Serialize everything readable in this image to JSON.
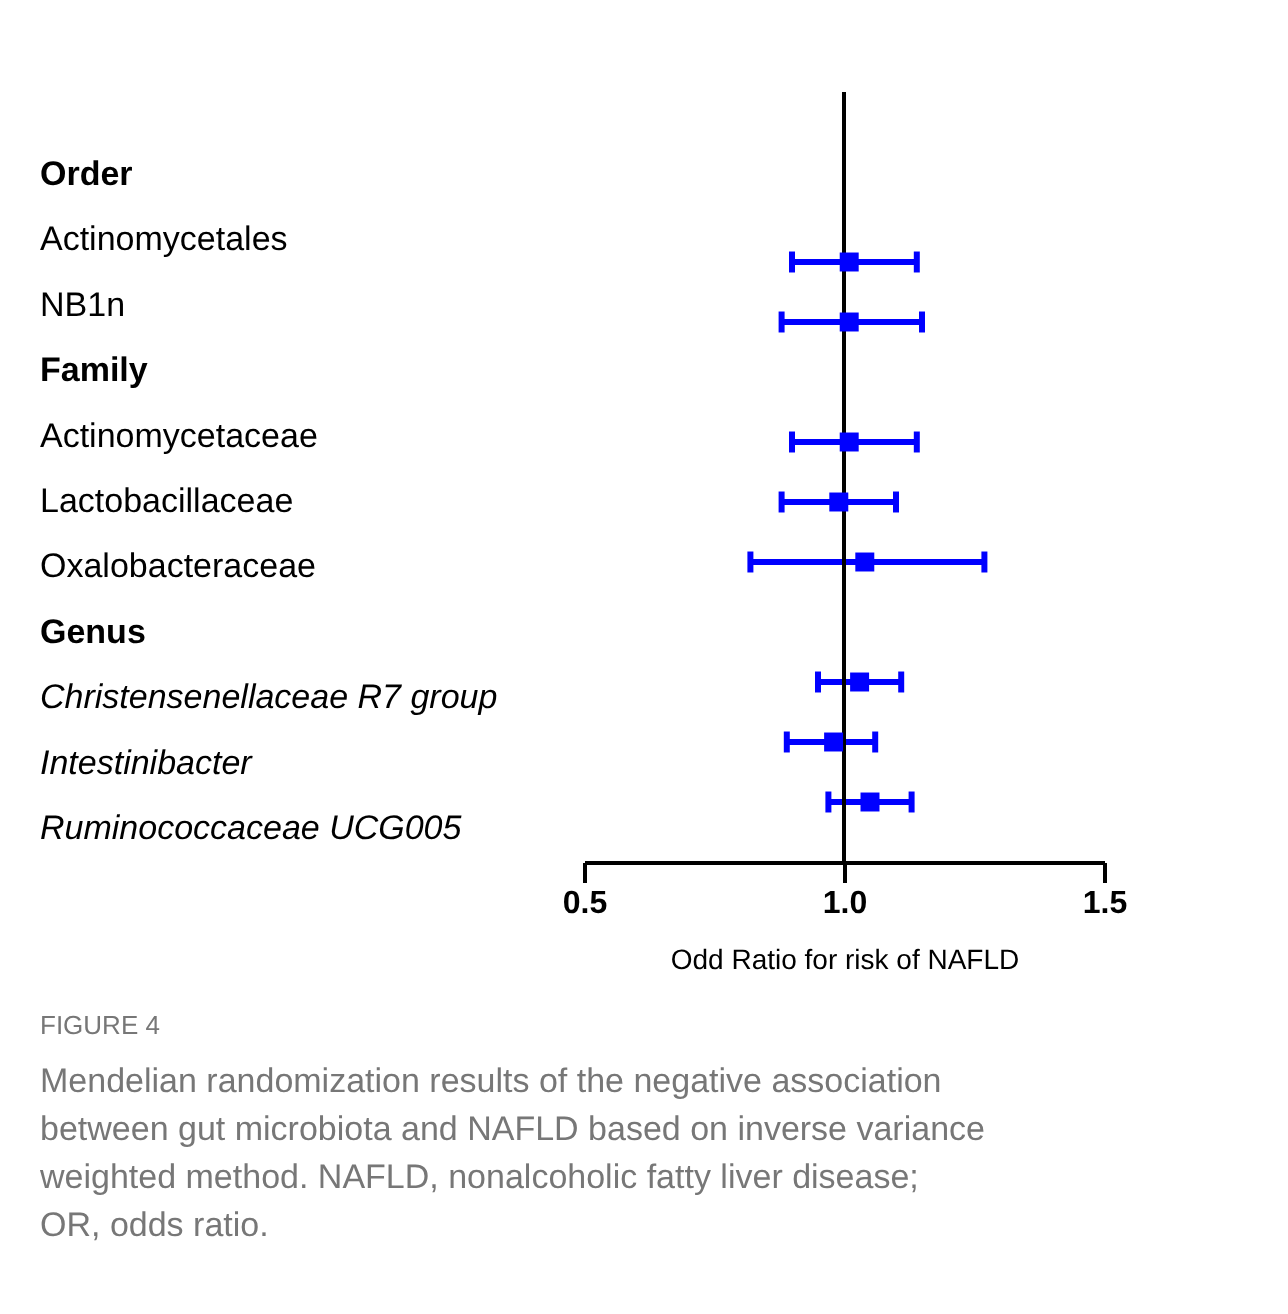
{
  "chart_data": {
    "type": "scatter",
    "orientation": "horizontal",
    "categories": [
      "Order",
      "Actinomycetales",
      "NB1n",
      "Family",
      "Actinomycetaceae",
      "Lactobacillaceae",
      "Oxalobacteraceae",
      "Genus",
      "Christensenellaceae R7 group",
      "Intestinibacter",
      "Ruminococcaceae UCG005"
    ],
    "series": [
      {
        "color": "#0000ff",
        "values": [
          null,
          1.01,
          1.01,
          null,
          1.01,
          0.99,
          1.04,
          null,
          1.03,
          0.98,
          1.05
        ],
        "errors": [
          null,
          [
            0.9,
            1.14
          ],
          [
            0.88,
            1.15
          ],
          null,
          [
            0.9,
            1.14
          ],
          [
            0.88,
            1.1
          ],
          [
            0.82,
            1.27
          ],
          null,
          [
            0.95,
            1.11
          ],
          [
            0.89,
            1.06
          ],
          [
            0.97,
            1.13
          ]
        ]
      }
    ],
    "xlim": [
      0.5,
      1.5
    ],
    "xticks": [
      {
        "value": 0.5,
        "label": "0.5"
      },
      {
        "value": 1.0,
        "label": "1.0"
      },
      {
        "value": 1.5,
        "label": "1.5"
      }
    ],
    "xlabel": "Odd Ratio for risk of NAFLD",
    "ref_lines": [
      {
        "axis": "x",
        "value": 1.0,
        "color": "#000000"
      }
    ],
    "marker": "square",
    "annotations": [
      "FIGURE 4",
      "Mendelian randomization results of the negative association between gut microbiota and NAFLD based on inverse variance weighted method. NAFLD, nonalcoholic fatty liver disease; OR, odds ratio."
    ]
  }
}
